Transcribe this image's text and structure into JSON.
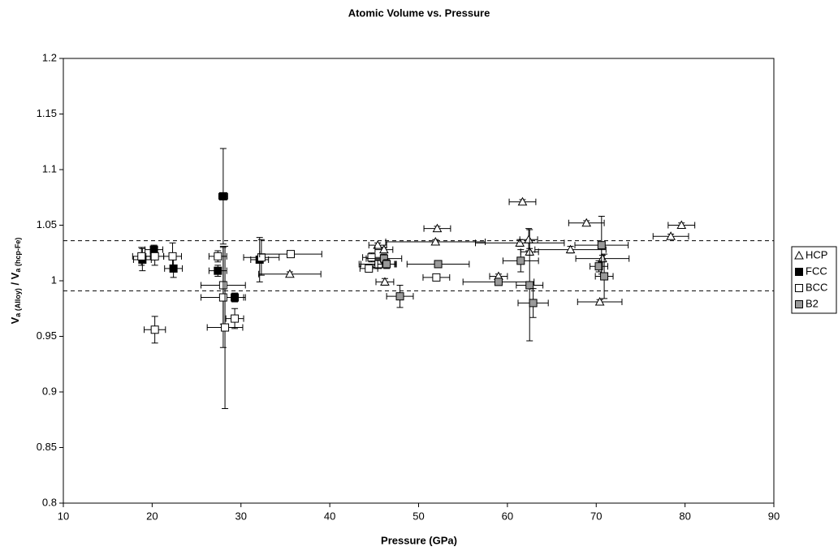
{
  "chart_data": {
    "type": "scatter",
    "title": "Atomic Volume vs. Pressure",
    "x_label": "Pressure (GPa)",
    "y_label_parts": [
      "V",
      "a (Alloy)",
      " / V",
      "a (hcp-Fe)"
    ],
    "xlim": [
      10,
      90
    ],
    "xticks": [
      10,
      20,
      30,
      40,
      50,
      60,
      70,
      80,
      90
    ],
    "ylim": [
      0.8,
      1.2
    ],
    "yticks": [
      0.8,
      0.85,
      0.9,
      0.95,
      1,
      1.05,
      1.1,
      1.15,
      1.2
    ],
    "reference_lines": [
      1.036,
      0.991
    ],
    "legend": "right",
    "series": [
      {
        "name": "HCP",
        "marker": "triangle",
        "color": "#ffffff",
        "x": [
          35.5,
          45.4,
          46.1,
          46.2,
          45.3,
          52.1,
          51.9,
          59.0,
          61.7,
          61.4,
          62.4,
          62.5,
          67.1,
          68.9,
          70.4,
          70.7,
          78.4,
          79.6
        ],
        "values": [
          1.006,
          1.032,
          1.028,
          0.999,
          1.015,
          1.047,
          1.035,
          1.004,
          1.071,
          1.034,
          1.037,
          1.026,
          1.028,
          1.052,
          0.981,
          1.02,
          1.04,
          1.05
        ],
        "xerr": [
          3.5,
          1,
          1,
          1,
          2,
          1.5,
          5.6,
          1,
          1.5,
          5,
          1,
          1,
          4,
          2,
          2.5,
          3,
          2,
          1.5
        ],
        "yerr": [
          0.002,
          0.002,
          0.002,
          0.003,
          0.003,
          0.002,
          0.002,
          0.002,
          0.002,
          0.003,
          0.01,
          0.003,
          0.003,
          0.002,
          0.002,
          0.003,
          0.002,
          0.002
        ]
      },
      {
        "name": "FCC",
        "marker": "square",
        "color": "#000000",
        "x": [
          18.9,
          20.2,
          22.4,
          28.0,
          27.4,
          29.3,
          32.1
        ],
        "values": [
          1.019,
          1.028,
          1.011,
          1.076,
          1.009,
          0.985,
          1.019
        ],
        "xerr": [
          1,
          1,
          1,
          0.5,
          1,
          1,
          1
        ],
        "yerr": [
          0.01,
          0.004,
          0.008,
          0.043,
          0.005,
          0.004,
          0.02
        ]
      },
      {
        "name": "BCC",
        "marker": "square",
        "color": "#ffffff",
        "x": [
          18.8,
          20.3,
          22.3,
          20.3,
          27.4,
          28.0,
          28.0,
          28.2,
          29.3,
          32.3,
          35.6,
          44.4,
          44.7,
          45.5,
          52.0
        ],
        "values": [
          1.022,
          1.022,
          1.022,
          0.956,
          1.022,
          0.996,
          0.985,
          0.958,
          0.966,
          1.021,
          1.024,
          1.011,
          1.021,
          1.015,
          1.003
        ],
        "xerr": [
          1,
          1,
          1,
          1.2,
          1,
          2.5,
          2.5,
          2,
          1,
          2,
          3.5,
          1,
          1,
          2,
          1.5
        ],
        "yerr": [
          0.008,
          0.008,
          0.012,
          0.012,
          0.005,
          0.035,
          0.045,
          0.073,
          0.009,
          0.016,
          0.003,
          0.003,
          0.004,
          0.004,
          0.003
        ]
      },
      {
        "name": "B2",
        "marker": "square",
        "color": "#999999",
        "x": [
          46.1,
          46.4,
          47.9,
          52.2,
          59.0,
          61.5,
          62.5,
          62.9,
          70.3,
          70.6,
          70.9
        ],
        "values": [
          1.02,
          1.015,
          0.986,
          1.015,
          0.999,
          1.018,
          0.996,
          0.98,
          1.013,
          1.032,
          1.004
        ],
        "xerr": [
          2,
          1,
          1.5,
          3.5,
          4,
          2,
          1.5,
          1.7,
          1,
          3,
          1
        ],
        "yerr": [
          0.004,
          0.004,
          0.01,
          0.003,
          0.003,
          0.01,
          0.05,
          0.013,
          0.005,
          0.026,
          0.02
        ]
      }
    ]
  }
}
